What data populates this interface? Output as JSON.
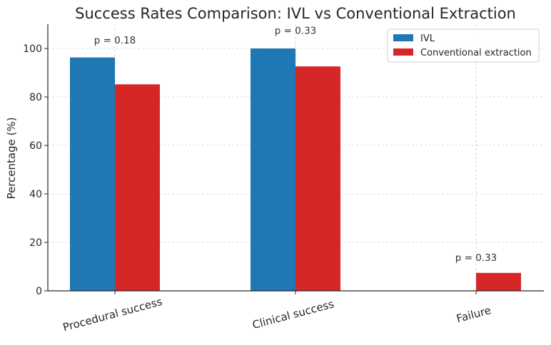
{
  "chart_data": {
    "type": "bar",
    "title": "Success Rates Comparison: IVL vs Conventional Extraction",
    "xlabel": "",
    "ylabel": "Percentage (%)",
    "ylim": [
      0,
      110
    ],
    "yticks": [
      0,
      20,
      40,
      60,
      80,
      100
    ],
    "grid": true,
    "legend_position": "top-right",
    "categories": [
      "Procedural success",
      "Clinical success",
      "Failure"
    ],
    "series": [
      {
        "name": "IVL",
        "color": "#1f77b4",
        "values": [
          96.3,
          100,
          0
        ]
      },
      {
        "name": "Conventional extraction",
        "color": "#d62728",
        "values": [
          85.2,
          92.6,
          7.4
        ]
      }
    ],
    "annotations": [
      {
        "category": "Procedural success",
        "text": "p = 0.18",
        "y": 102
      },
      {
        "category": "Clinical success",
        "text": "p = 0.33",
        "y": 106
      },
      {
        "category": "Failure",
        "text": "p = 0.33",
        "y": 12.4
      }
    ]
  }
}
